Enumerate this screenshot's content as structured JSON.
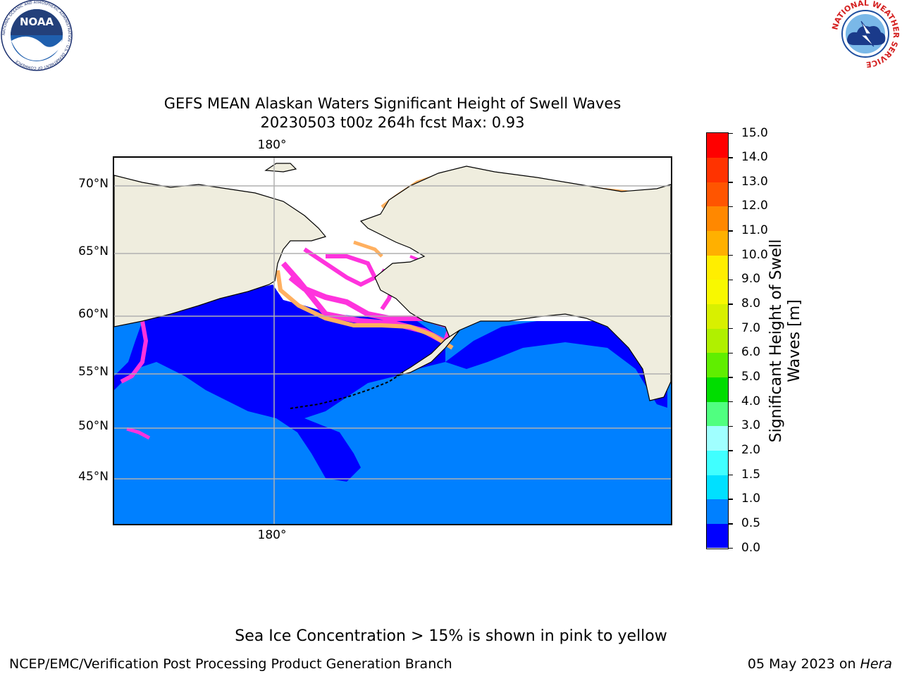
{
  "title": {
    "line1": "GEFS MEAN Alaskan Waters Significant Height of Swell Waves",
    "line2": "20230503 t00z 264h fcst   Max: 0.93"
  },
  "map": {
    "lat_labels": [
      "70°N",
      "65°N",
      "60°N",
      "55°N",
      "50°N",
      "45°N"
    ],
    "lon_label_top": "180°",
    "lon_label_bottom": "180°",
    "colors": {
      "land": "#efedde",
      "ocean_low": "#0000ff",
      "ocean_mid": "#0080ff",
      "ice_pink": "#ff33dd",
      "ice_orange": "#ffb060",
      "ice_yellow": "#ffee66",
      "ice_free": "#ffffff",
      "gridline": "#b0b0b0"
    }
  },
  "colorbar": {
    "title_line1": "Significant Height of Swell",
    "title_line2": "Waves [m]",
    "tick_labels": [
      "0.0",
      "0.5",
      "1.0",
      "1.5",
      "2.0",
      "3.0",
      "4.0",
      "5.0",
      "6.0",
      "7.0",
      "8.0",
      "9.0",
      "10.0",
      "11.0",
      "12.0",
      "13.0",
      "14.0",
      "15.0"
    ],
    "colors": [
      "#0000ff",
      "#0080ff",
      "#00e0ff",
      "#40ffff",
      "#a0ffff",
      "#50ff80",
      "#00dd00",
      "#60ee00",
      "#b0f000",
      "#d8f000",
      "#f8f800",
      "#ffee00",
      "#ffb000",
      "#ff8800",
      "#ff5500",
      "#ff3300",
      "#ff0000"
    ]
  },
  "logos": {
    "noaa": {
      "text": "NOAA",
      "ring_text": "NATIONAL OCEANIC AND ATMOSPHERIC ADMINISTRATION · U.S. DEPARTMENT OF COMMERCE"
    },
    "nws": {
      "ring_text": "NATIONAL WEATHER SERVICE"
    }
  },
  "footer": {
    "note": "Sea Ice Concentration > 15% is shown in pink to yellow",
    "left": "NCEP/EMC/Verification Post Processing Product Generation Branch",
    "right_date": "05 May 2023 on ",
    "right_host": "Hera"
  }
}
